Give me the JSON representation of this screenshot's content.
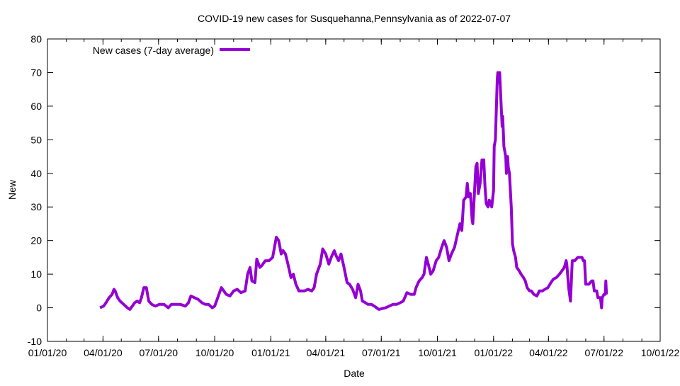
{
  "chart_data": {
    "type": "line",
    "title": "COVID-19 new cases for Susquehanna,Pennsylvania as of 2022-07-07",
    "xlabel": "Date",
    "ylabel": "New",
    "x_origin": "2020-01-01",
    "x_unit": "days",
    "xlim": [
      0,
      1004
    ],
    "ylim": [
      -10,
      80
    ],
    "y_ticks": [
      -10,
      0,
      10,
      20,
      30,
      40,
      50,
      60,
      70,
      80
    ],
    "x_ticks": [
      {
        "day": 0,
        "label": "01/01/20"
      },
      {
        "day": 91,
        "label": "04/01/20"
      },
      {
        "day": 182,
        "label": "07/01/20"
      },
      {
        "day": 274,
        "label": "10/01/20"
      },
      {
        "day": 366,
        "label": "01/01/21"
      },
      {
        "day": 456,
        "label": "04/01/21"
      },
      {
        "day": 547,
        "label": "07/01/21"
      },
      {
        "day": 639,
        "label": "10/01/21"
      },
      {
        "day": 731,
        "label": "01/01/22"
      },
      {
        "day": 821,
        "label": "04/01/22"
      },
      {
        "day": 912,
        "label": "07/01/22"
      },
      {
        "day": 1004,
        "label": "10/01/22"
      }
    ],
    "grid": false,
    "legend_position": "top-left",
    "series": [
      {
        "name": "New cases (7-day average)",
        "color": "#9400d3",
        "points": [
          [
            86,
            0
          ],
          [
            92,
            0.5
          ],
          [
            96,
            1.5
          ],
          [
            101,
            3
          ],
          [
            106,
            4
          ],
          [
            109,
            5.5
          ],
          [
            111,
            5
          ],
          [
            115,
            3
          ],
          [
            119,
            2
          ],
          [
            125,
            1
          ],
          [
            131,
            0
          ],
          [
            135,
            -0.5
          ],
          [
            139,
            0.5
          ],
          [
            143,
            1.5
          ],
          [
            147,
            2
          ],
          [
            151,
            1.5
          ],
          [
            154,
            3
          ],
          [
            158,
            6
          ],
          [
            162,
            6
          ],
          [
            166,
            2
          ],
          [
            171,
            1
          ],
          [
            177,
            0.5
          ],
          [
            183,
            1
          ],
          [
            191,
            1
          ],
          [
            198,
            0
          ],
          [
            203,
            1
          ],
          [
            210,
            1
          ],
          [
            218,
            1
          ],
          [
            226,
            0.5
          ],
          [
            231,
            1.5
          ],
          [
            235,
            3.5
          ],
          [
            241,
            3
          ],
          [
            247,
            2.5
          ],
          [
            253,
            1.5
          ],
          [
            259,
            1
          ],
          [
            264,
            1
          ],
          [
            270,
            0
          ],
          [
            274,
            0.5
          ],
          [
            279,
            3
          ],
          [
            285,
            6
          ],
          [
            289,
            5
          ],
          [
            293,
            4
          ],
          [
            299,
            3.5
          ],
          [
            305,
            5
          ],
          [
            311,
            5.5
          ],
          [
            317,
            4.5
          ],
          [
            324,
            5
          ],
          [
            328,
            10
          ],
          [
            332,
            12
          ],
          [
            335,
            8
          ],
          [
            340,
            7.5
          ],
          [
            343,
            14.5
          ],
          [
            348,
            12
          ],
          [
            351,
            12.5
          ],
          [
            357,
            14
          ],
          [
            363,
            14
          ],
          [
            369,
            15
          ],
          [
            375,
            21
          ],
          [
            379,
            20
          ],
          [
            383,
            16
          ],
          [
            386,
            17
          ],
          [
            390,
            16
          ],
          [
            394,
            13
          ],
          [
            399,
            9
          ],
          [
            403,
            10
          ],
          [
            407,
            7
          ],
          [
            412,
            5
          ],
          [
            416,
            5
          ],
          [
            421,
            5
          ],
          [
            427,
            5.5
          ],
          [
            433,
            5
          ],
          [
            437,
            6
          ],
          [
            441,
            10
          ],
          [
            447,
            13
          ],
          [
            451,
            17.5
          ],
          [
            456,
            16
          ],
          [
            461,
            13
          ],
          [
            465,
            15
          ],
          [
            470,
            17
          ],
          [
            473,
            15.5
          ],
          [
            477,
            14
          ],
          [
            481,
            16
          ],
          [
            486,
            12
          ],
          [
            491,
            7.5
          ],
          [
            495,
            7
          ],
          [
            500,
            5.5
          ],
          [
            505,
            3
          ],
          [
            509,
            7
          ],
          [
            513,
            5
          ],
          [
            516,
            2
          ],
          [
            521,
            1.5
          ],
          [
            525,
            1
          ],
          [
            531,
            1
          ],
          [
            537,
            0.3
          ],
          [
            543,
            -0.5
          ],
          [
            549,
            -0.2
          ],
          [
            554,
            0
          ],
          [
            560,
            0.5
          ],
          [
            566,
            1
          ],
          [
            572,
            1
          ],
          [
            578,
            1.5
          ],
          [
            583,
            2
          ],
          [
            589,
            4.5
          ],
          [
            595,
            4
          ],
          [
            601,
            4
          ],
          [
            604,
            6
          ],
          [
            609,
            8
          ],
          [
            614,
            9
          ],
          [
            617,
            10
          ],
          [
            621,
            15
          ],
          [
            624,
            13
          ],
          [
            628,
            10
          ],
          [
            632,
            11
          ],
          [
            637,
            14
          ],
          [
            641,
            15
          ],
          [
            646,
            18
          ],
          [
            650,
            20
          ],
          [
            654,
            18
          ],
          [
            658,
            14
          ],
          [
            662,
            16
          ],
          [
            667,
            18
          ],
          [
            672,
            22
          ],
          [
            676,
            25
          ],
          [
            679,
            23
          ],
          [
            682,
            32
          ],
          [
            686,
            33
          ],
          [
            688,
            37
          ],
          [
            690,
            33
          ],
          [
            693,
            34
          ],
          [
            696,
            26
          ],
          [
            697,
            25
          ],
          [
            702,
            42
          ],
          [
            704,
            43
          ],
          [
            706,
            34
          ],
          [
            709,
            37
          ],
          [
            712,
            44
          ],
          [
            715,
            44
          ],
          [
            717,
            36
          ],
          [
            719,
            31
          ],
          [
            722,
            30
          ],
          [
            724,
            32
          ],
          [
            726,
            31
          ],
          [
            728,
            30
          ],
          [
            731,
            35
          ],
          [
            732,
            48
          ],
          [
            734,
            50
          ],
          [
            737,
            68
          ],
          [
            738,
            70
          ],
          [
            740,
            67
          ],
          [
            741,
            70
          ],
          [
            744,
            58
          ],
          [
            745,
            54
          ],
          [
            746,
            57
          ],
          [
            748,
            48
          ],
          [
            751,
            45
          ],
          [
            752,
            40
          ],
          [
            754,
            45
          ],
          [
            755,
            42
          ],
          [
            757,
            40
          ],
          [
            760,
            30
          ],
          [
            762,
            19
          ],
          [
            764,
            17
          ],
          [
            767,
            15
          ],
          [
            769,
            12
          ],
          [
            773,
            11
          ],
          [
            776,
            10
          ],
          [
            780,
            9
          ],
          [
            783,
            8
          ],
          [
            786,
            6
          ],
          [
            790,
            5
          ],
          [
            793,
            5
          ],
          [
            797,
            4
          ],
          [
            802,
            3.5
          ],
          [
            806,
            5
          ],
          [
            811,
            5
          ],
          [
            815,
            5.5
          ],
          [
            820,
            6
          ],
          [
            825,
            7.5
          ],
          [
            829,
            8.5
          ],
          [
            834,
            9
          ],
          [
            839,
            10
          ],
          [
            843,
            11
          ],
          [
            847,
            12
          ],
          [
            850,
            14
          ],
          [
            851,
            13
          ],
          [
            854,
            6
          ],
          [
            857,
            2
          ],
          [
            860,
            14
          ],
          [
            864,
            14
          ],
          [
            869,
            15
          ],
          [
            876,
            15
          ],
          [
            878,
            14
          ],
          [
            880,
            14
          ],
          [
            882,
            7
          ],
          [
            887,
            7
          ],
          [
            892,
            8
          ],
          [
            894,
            8
          ],
          [
            896,
            5
          ],
          [
            900,
            5
          ],
          [
            902,
            3
          ],
          [
            906,
            3
          ],
          [
            908,
            0
          ],
          [
            909,
            3
          ],
          [
            912,
            4
          ],
          [
            914,
            4
          ],
          [
            915,
            8
          ],
          [
            916,
            4
          ]
        ]
      }
    ]
  }
}
